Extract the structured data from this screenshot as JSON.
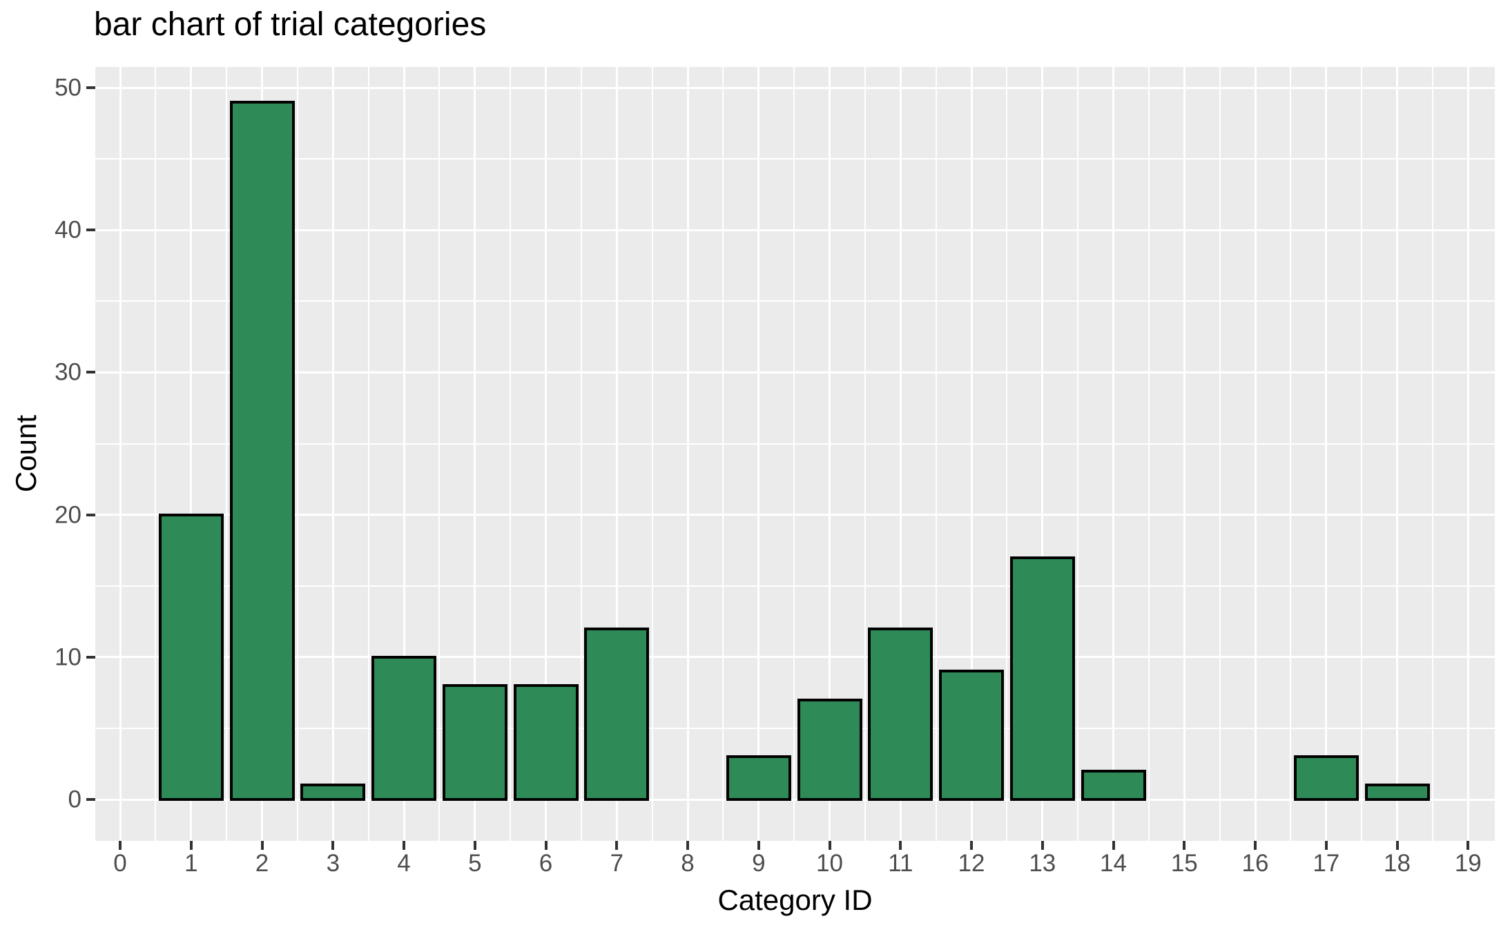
{
  "chart_data": {
    "type": "bar",
    "title": "bar chart of trial categories",
    "xlabel": "Category ID",
    "ylabel": "Count",
    "categories": [
      0,
      1,
      2,
      3,
      4,
      5,
      6,
      7,
      8,
      9,
      10,
      11,
      12,
      13,
      14,
      15,
      16,
      17,
      18,
      19
    ],
    "values": [
      0,
      20,
      49,
      1,
      10,
      8,
      8,
      12,
      0,
      3,
      7,
      12,
      9,
      17,
      2,
      0,
      0,
      3,
      1,
      0
    ],
    "x_ticks": [
      0,
      1,
      2,
      3,
      4,
      5,
      6,
      7,
      8,
      9,
      10,
      11,
      12,
      13,
      14,
      15,
      16,
      17,
      18,
      19
    ],
    "y_ticks": [
      0,
      10,
      20,
      30,
      40,
      50
    ],
    "xlim": [
      -0.35,
      19.4
    ],
    "ylim": [
      -2.5,
      51.5
    ],
    "grid": {
      "major": true,
      "minor": true,
      "color": "#FFFFFF",
      "panel": "gray"
    },
    "legend": "none",
    "colors": {
      "bar_fill": "#2E8B57",
      "bar_edge": "#000000",
      "panel_bg": "#EBEBEB",
      "grid": "#FFFFFF",
      "tick_label": "#4D4D4D",
      "tick_mark": "#333333",
      "axis_title": "#000000",
      "title": "#000000",
      "page_bg": "#FFFFFF"
    }
  }
}
